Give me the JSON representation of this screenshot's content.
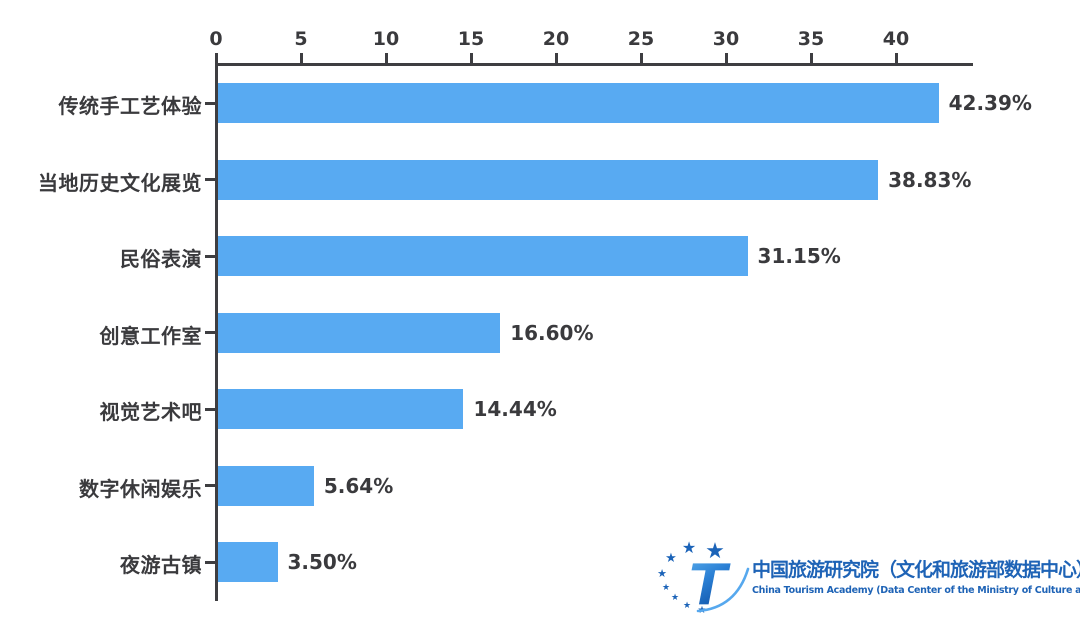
{
  "chart_data": {
    "type": "bar",
    "orientation": "horizontal",
    "title": "",
    "xlabel": "",
    "ylabel": "",
    "categories": [
      "传统手工艺体验",
      "当地历史文化展览",
      "民俗表演",
      "创意工作室",
      "视觉艺术吧",
      "数字休闲娱乐",
      "夜游古镇"
    ],
    "values": [
      42.39,
      38.83,
      31.15,
      16.6,
      14.44,
      5.64,
      3.5
    ],
    "value_labels": [
      "42.39%",
      "38.83%",
      "31.15%",
      "16.60%",
      "14.44%",
      "5.64%",
      "3.50%"
    ],
    "x_ticks": [
      0,
      5,
      10,
      15,
      20,
      25,
      30,
      35,
      40
    ],
    "xlim": [
      0,
      44.5
    ],
    "x_axis_position": "top",
    "grid": false,
    "legend": null,
    "bar_color": "#58aaf2",
    "axis_color": "#3e3e41",
    "text_color": "#3a3a3d"
  },
  "branding": {
    "org_cn": "中国旅游研究院（文化和旅游部数据中心）",
    "org_en": "China Tourism Academy (Data Center of the Ministry of Culture and Tourism)",
    "brand_color": "#1e63b6",
    "logo_icon": "stylized-T-with-star-arc"
  }
}
